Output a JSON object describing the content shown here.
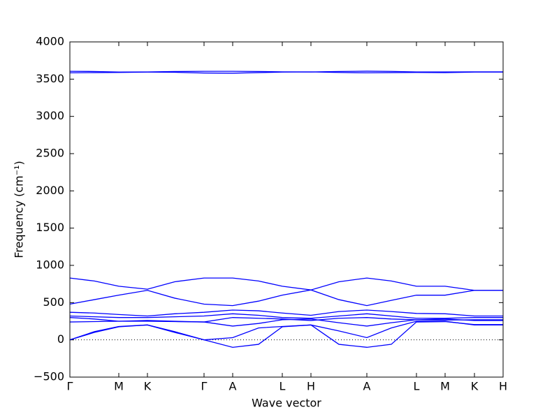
{
  "chart_data": {
    "type": "line",
    "xlabel": "Wave vector",
    "ylabel": "Frequency (cm⁻¹)",
    "color": "#0000ff",
    "x": [
      0,
      0.35,
      0.7,
      1.11,
      1.5,
      1.92,
      2.33,
      2.7,
      3.04,
      3.45,
      3.85,
      4.25,
      4.6,
      4.96,
      5.37,
      5.79,
      6.2
    ],
    "series": [
      {
        "values": [
          3605,
          3603,
          3595,
          3597,
          3602,
          3605,
          3605,
          3603,
          3598,
          3597,
          3603,
          3607,
          3604,
          3597,
          3597,
          3598,
          3598
        ]
      },
      {
        "values": [
          3585,
          3588,
          3590,
          3595,
          3592,
          3582,
          3580,
          3588,
          3595,
          3597,
          3590,
          3585,
          3588,
          3590,
          3588,
          3595,
          3595
        ]
      },
      {
        "values": [
          830,
          790,
          720,
          680,
          780,
          830,
          830,
          790,
          720,
          670,
          780,
          830,
          790,
          720,
          720,
          665,
          665
        ]
      },
      {
        "values": [
          480,
          540,
          600,
          665,
          560,
          480,
          460,
          520,
          600,
          670,
          540,
          460,
          530,
          600,
          600,
          665,
          665
        ]
      },
      {
        "values": [
          370,
          360,
          340,
          320,
          350,
          370,
          400,
          390,
          360,
          330,
          380,
          400,
          380,
          355,
          350,
          320,
          320
        ]
      },
      {
        "values": [
          320,
          310,
          300,
          300,
          310,
          320,
          350,
          330,
          300,
          290,
          320,
          350,
          320,
          290,
          290,
          300,
          300
        ]
      },
      {
        "values": [
          300,
          280,
          250,
          260,
          250,
          240,
          300,
          290,
          280,
          260,
          290,
          300,
          280,
          270,
          265,
          270,
          270
        ]
      },
      {
        "values": [
          240,
          245,
          250,
          250,
          245,
          240,
          185,
          220,
          270,
          280,
          230,
          185,
          230,
          270,
          280,
          260,
          260
        ]
      },
      {
        "values": [
          0,
          110,
          180,
          200,
          110,
          0,
          30,
          160,
          180,
          200,
          120,
          30,
          160,
          250,
          250,
          200,
          200
        ]
      },
      {
        "values": [
          0,
          100,
          175,
          200,
          100,
          0,
          -100,
          -60,
          175,
          200,
          -60,
          -100,
          -60,
          240,
          245,
          205,
          205
        ]
      }
    ],
    "xlim": [
      0,
      6.2
    ],
    "ylim": [
      -500,
      4000
    ],
    "xticks": [
      {
        "value": 0,
        "label": "Γ"
      },
      {
        "value": 0.7,
        "label": "M"
      },
      {
        "value": 1.11,
        "label": "K"
      },
      {
        "value": 1.92,
        "label": "Γ"
      },
      {
        "value": 2.33,
        "label": "A"
      },
      {
        "value": 3.04,
        "label": "L"
      },
      {
        "value": 3.45,
        "label": "H"
      },
      {
        "value": 4.25,
        "label": "A"
      },
      {
        "value": 4.96,
        "label": "L"
      },
      {
        "value": 5.37,
        "label": "M"
      },
      {
        "value": 5.79,
        "label": "K"
      },
      {
        "value": 6.2,
        "label": "H"
      }
    ],
    "yticks": [
      {
        "value": -500,
        "label": "−500"
      },
      0,
      500,
      1000,
      1500,
      2000,
      2500,
      3000,
      3500,
      4000
    ]
  }
}
